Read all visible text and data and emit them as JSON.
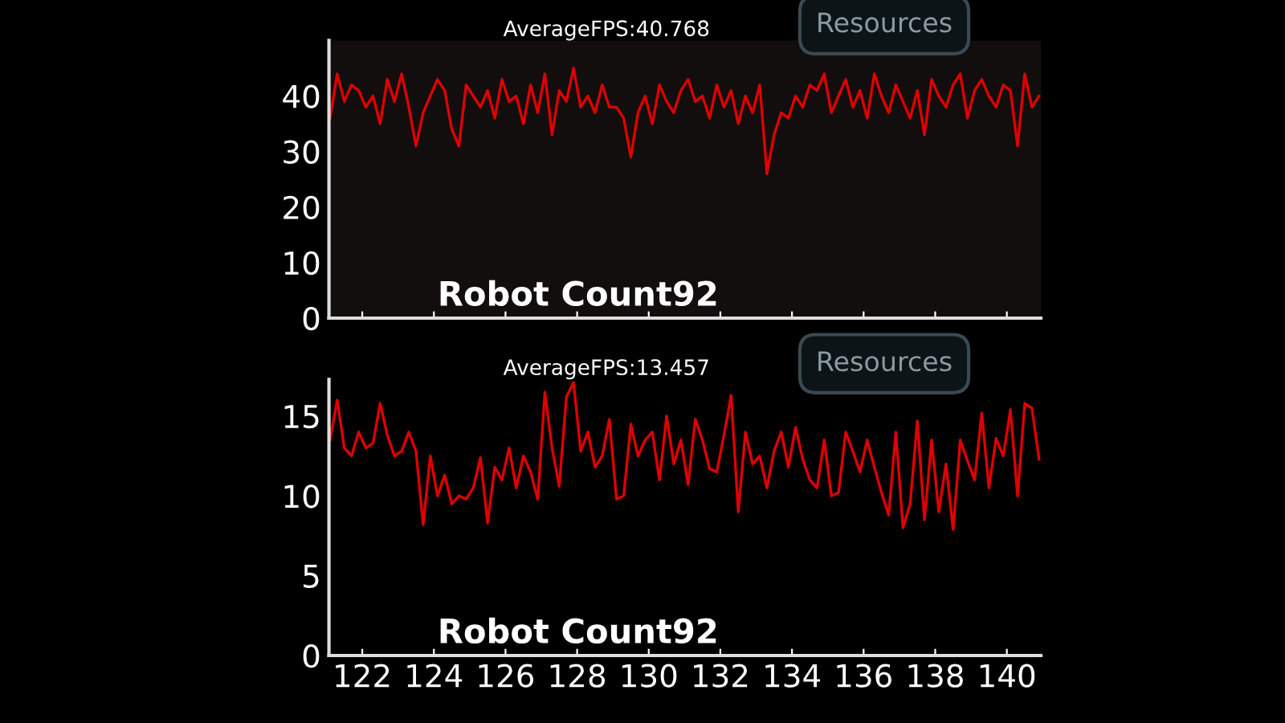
{
  "chart_data": [
    {
      "type": "line",
      "tick_labels": "y",
      "xlim": [
        121.07,
        140.95
      ],
      "xticks": [
        {
          "value": 122,
          "label": null
        },
        {
          "value": 124,
          "label": null
        },
        {
          "value": 126,
          "label": null
        },
        {
          "value": 128,
          "label": null
        },
        {
          "value": 130,
          "label": null
        },
        {
          "value": 132,
          "label": null
        },
        {
          "value": 134,
          "label": null
        },
        {
          "value": 136,
          "label": null
        },
        {
          "value": 138,
          "label": null
        },
        {
          "value": 140,
          "label": null
        }
      ],
      "ylim": [
        0,
        50
      ],
      "yticks": [
        0,
        10,
        20,
        30,
        40
      ],
      "grid": false,
      "legend": false,
      "marker": "none",
      "line_style": "solid",
      "annotations": [
        "AverageFPS:40.768",
        "Resources",
        "Robot Count92"
      ],
      "series": [
        {
          "color": "#e00000",
          "x": [
            121.1,
            121.3,
            121.5,
            121.7,
            121.9,
            122.1,
            122.3,
            122.5,
            122.7,
            122.9,
            123.1,
            123.3,
            123.5,
            123.7,
            123.9,
            124.1,
            124.3,
            124.5,
            124.7,
            124.9,
            125.1,
            125.3,
            125.5,
            125.7,
            125.9,
            126.1,
            126.3,
            126.5,
            126.7,
            126.9,
            127.1,
            127.3,
            127.5,
            127.7,
            127.9,
            128.1,
            128.3,
            128.5,
            128.7,
            128.9,
            129.1,
            129.3,
            129.5,
            129.7,
            129.9,
            130.1,
            130.3,
            130.5,
            130.7,
            130.9,
            131.1,
            131.3,
            131.5,
            131.7,
            131.9,
            132.1,
            132.3,
            132.5,
            132.7,
            132.9,
            133.1,
            133.3,
            133.5,
            133.7,
            133.9,
            134.1,
            134.3,
            134.5,
            134.7,
            134.9,
            135.1,
            135.3,
            135.5,
            135.7,
            135.9,
            136.1,
            136.3,
            136.5,
            136.7,
            136.9,
            137.1,
            137.3,
            137.5,
            137.7,
            137.9,
            138.1,
            138.3,
            138.5,
            138.7,
            138.9,
            139.1,
            139.3,
            139.5,
            139.7,
            139.9,
            140.1,
            140.3,
            140.5,
            140.7,
            140.9
          ],
          "values": [
            36,
            44,
            39,
            42,
            41,
            38,
            40,
            35,
            43,
            39,
            44,
            38,
            31,
            37,
            40,
            43,
            41,
            34,
            31,
            42,
            40,
            38,
            41,
            36,
            43,
            39,
            40,
            35,
            42,
            37,
            44,
            33,
            41,
            39,
            45,
            38,
            40,
            37,
            42,
            38,
            38,
            36,
            29,
            37,
            40,
            35,
            42,
            39,
            37,
            41,
            43,
            39,
            40,
            36,
            42,
            38,
            41,
            35,
            40,
            37,
            42,
            26,
            33,
            37,
            36,
            40,
            38,
            42,
            41,
            44,
            37,
            40,
            43,
            38,
            41,
            36,
            44,
            40,
            37,
            42,
            39,
            36,
            41,
            33,
            43,
            40,
            38,
            42,
            44,
            36,
            41,
            43,
            40,
            38,
            42,
            41,
            31,
            44,
            38,
            40
          ]
        }
      ]
    },
    {
      "type": "line",
      "xlim": [
        121.07,
        140.95
      ],
      "xticks": [
        122,
        124,
        126,
        128,
        130,
        132,
        134,
        136,
        138,
        140
      ],
      "ylim": [
        0,
        17.3
      ],
      "yticks": [
        0,
        5,
        10,
        15
      ],
      "grid": false,
      "legend": false,
      "marker": "none",
      "line_style": "solid",
      "annotations": [
        "AverageFPS:13.457",
        "Resources",
        "Robot Count92"
      ],
      "series": [
        {
          "color": "#e00000",
          "x": [
            121.1,
            121.3,
            121.5,
            121.7,
            121.9,
            122.1,
            122.3,
            122.5,
            122.7,
            122.9,
            123.1,
            123.3,
            123.5,
            123.7,
            123.9,
            124.1,
            124.3,
            124.5,
            124.7,
            124.9,
            125.1,
            125.3,
            125.5,
            125.7,
            125.9,
            126.1,
            126.3,
            126.5,
            126.7,
            126.9,
            127.1,
            127.3,
            127.5,
            127.7,
            127.9,
            128.1,
            128.3,
            128.5,
            128.7,
            128.9,
            129.1,
            129.3,
            129.5,
            129.7,
            129.9,
            130.1,
            130.3,
            130.5,
            130.7,
            130.9,
            131.1,
            131.3,
            131.5,
            131.7,
            131.9,
            132.1,
            132.3,
            132.5,
            132.7,
            132.9,
            133.1,
            133.3,
            133.5,
            133.7,
            133.9,
            134.1,
            134.3,
            134.5,
            134.7,
            134.9,
            135.1,
            135.3,
            135.5,
            135.7,
            135.9,
            136.1,
            136.3,
            136.5,
            136.7,
            136.9,
            137.1,
            137.3,
            137.5,
            137.7,
            137.9,
            138.1,
            138.3,
            138.5,
            138.7,
            138.9,
            139.1,
            139.3,
            139.5,
            139.7,
            139.9,
            140.1,
            140.3,
            140.5,
            140.7,
            140.9
          ],
          "values": [
            13.5,
            16,
            13,
            12.5,
            14,
            13,
            13.3,
            15.8,
            13.8,
            12.5,
            12.8,
            14,
            12.8,
            8.2,
            12.5,
            10,
            11.3,
            9.5,
            10,
            9.8,
            10.5,
            12.4,
            8.3,
            11.8,
            11,
            13,
            10.5,
            12.5,
            11.5,
            9.8,
            16.5,
            13,
            10.6,
            16.2,
            17.1,
            12.8,
            14,
            11.8,
            12.5,
            14.8,
            9.8,
            10,
            14.5,
            12.5,
            13.5,
            14,
            11,
            15,
            12,
            13.5,
            10.7,
            14.8,
            13.5,
            11.7,
            11.5,
            13.8,
            16.3,
            9,
            14,
            12,
            12.5,
            10.5,
            12.8,
            14,
            11.8,
            14.3,
            12.3,
            11,
            10.5,
            13.5,
            10,
            10.2,
            14,
            12.8,
            11.5,
            13.5,
            11.8,
            10.2,
            8.8,
            14,
            8,
            9.5,
            14.7,
            8.5,
            13.5,
            9,
            12,
            7.9,
            13.5,
            12.2,
            11,
            15.2,
            10.5,
            13.6,
            12.5,
            15.4,
            10,
            15.8,
            15.5,
            12.3
          ]
        }
      ]
    }
  ]
}
